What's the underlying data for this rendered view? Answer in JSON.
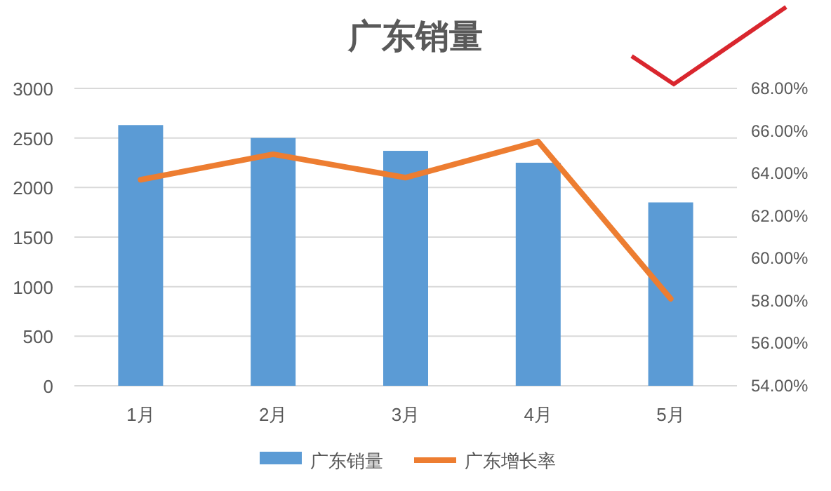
{
  "chart_data": {
    "type": "bar",
    "title": "广东销量",
    "categories": [
      "1月",
      "2月",
      "3月",
      "4月",
      "5月"
    ],
    "series": [
      {
        "name": "广东销量",
        "color": "#5b9bd5",
        "values": [
          2630,
          2500,
          2370,
          2250,
          1850
        ]
      },
      {
        "name": "广东增长率",
        "type": "line",
        "axis": "y2",
        "color": "#ed7d31",
        "values": [
          63.7,
          64.9,
          63.8,
          65.5,
          58.1
        ]
      }
    ],
    "ylim": [
      0,
      3000
    ],
    "yticks": [
      0,
      500,
      1000,
      1500,
      2000,
      2500,
      3000
    ],
    "y2lim": [
      54,
      68
    ],
    "y2ticks": [
      {
        "value": 54,
        "label": "54.00%"
      },
      {
        "value": 56,
        "label": "56.00%"
      },
      {
        "value": 58,
        "label": "58.00%"
      },
      {
        "value": 60,
        "label": "60.00%"
      },
      {
        "value": 62,
        "label": "62.00%"
      },
      {
        "value": 64,
        "label": "64.00%"
      },
      {
        "value": 66,
        "label": "66.00%"
      },
      {
        "value": 68,
        "label": "68.00%"
      }
    ],
    "grid": "y",
    "legend": "bottom"
  }
}
